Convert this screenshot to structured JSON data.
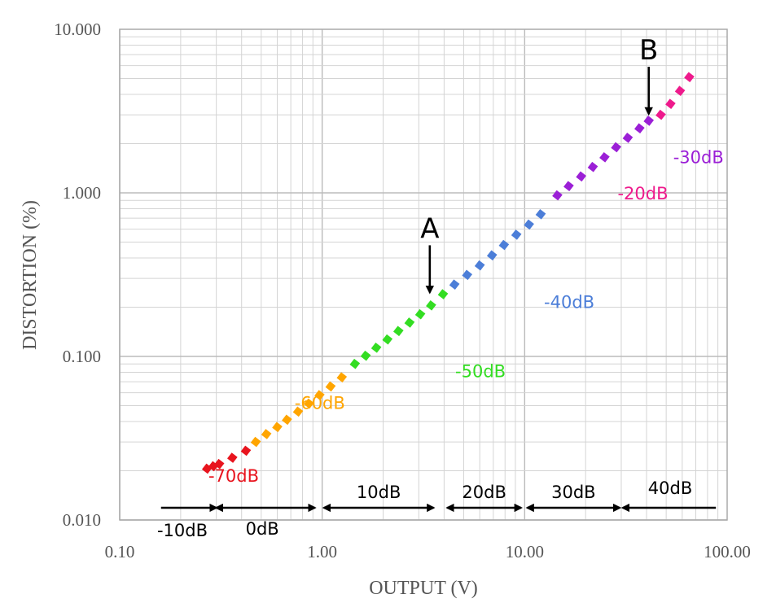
{
  "chart_data": {
    "type": "scatter",
    "xlabel": "OUTPUT (V)",
    "ylabel": "DISTORTION (%)",
    "xscale": "log",
    "yscale": "log",
    "xlim": [
      0.1,
      100
    ],
    "ylim": [
      0.01,
      10
    ],
    "grid": true,
    "x_ticks": [
      "0.10",
      "1.00",
      "10.00",
      "100.00"
    ],
    "y_ticks": [
      "0.010",
      "0.100",
      "1.000",
      "10.000"
    ],
    "series": [
      {
        "name": "-70dB",
        "color": "#e8141e",
        "x": [
          0.27,
          0.29,
          0.31,
          0.36,
          0.42
        ],
        "y": [
          0.0206,
          0.0213,
          0.022,
          0.024,
          0.0265
        ]
      },
      {
        "name": "-60dB",
        "color": "#ffa500",
        "x": [
          0.47,
          0.53,
          0.6,
          0.67,
          0.76,
          0.86,
          0.97,
          1.1,
          1.25
        ],
        "y": [
          0.03,
          0.0335,
          0.037,
          0.041,
          0.046,
          0.0515,
          0.058,
          0.0655,
          0.0745
        ]
      },
      {
        "name": "-50dB",
        "color": "#33dd22",
        "x": [
          1.45,
          1.64,
          1.85,
          2.1,
          2.38,
          2.7,
          3.05,
          3.45,
          3.95
        ],
        "y": [
          0.09,
          0.101,
          0.113,
          0.127,
          0.143,
          0.161,
          0.181,
          0.205,
          0.24
        ]
      },
      {
        "name": "-40dB",
        "color": "#4c7ed8",
        "x": [
          4.5,
          5.2,
          6.0,
          6.9,
          7.9,
          9.1,
          10.5,
          12.0
        ],
        "y": [
          0.275,
          0.315,
          0.36,
          0.415,
          0.48,
          0.555,
          0.64,
          0.74
        ]
      },
      {
        "name": "-30dB",
        "color": "#9b1fd6",
        "x": [
          14.5,
          16.5,
          19.0,
          21.7,
          24.8,
          28.3,
          32.3,
          36.9,
          41.0
        ],
        "y": [
          0.965,
          1.1,
          1.26,
          1.44,
          1.65,
          1.9,
          2.17,
          2.48,
          2.76
        ]
      },
      {
        "name": "-20dB",
        "color": "#ee1a8c",
        "x": [
          47.0,
          52.5,
          58.5,
          65.0
        ],
        "y": [
          3.0,
          3.5,
          4.2,
          5.1
        ]
      }
    ],
    "annotations": [
      {
        "text": "A",
        "x": 3.4,
        "y": 0.235
      },
      {
        "text": "B",
        "x": 41.0,
        "y": 2.9
      }
    ],
    "ranges": [
      {
        "label": "-10dB",
        "from": 0.16,
        "to": 0.3,
        "arrow": "right"
      },
      {
        "label": "0dB",
        "from": 0.3,
        "to": 0.92,
        "arrow": "both"
      },
      {
        "label": "10dB",
        "from": 1.02,
        "to": 3.55,
        "arrow": "both"
      },
      {
        "label": "20dB",
        "from": 4.15,
        "to": 9.6,
        "arrow": "both"
      },
      {
        "label": "30dB",
        "from": 10.3,
        "to": 29.5,
        "arrow": "both"
      },
      {
        "label": "40dB",
        "from": 30.5,
        "to": 88.0,
        "arrow": "left"
      }
    ]
  }
}
